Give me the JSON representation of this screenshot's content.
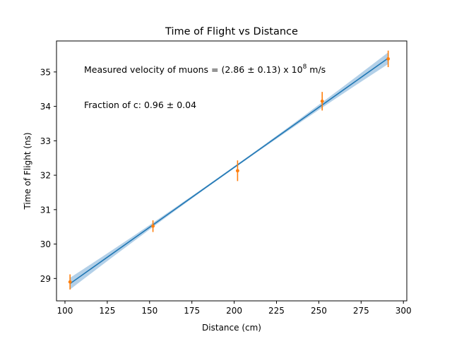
{
  "chart_data": {
    "type": "scatter",
    "title": "Time of Flight vs Distance",
    "xlabel": "Distance (cm)",
    "ylabel": "Time of Flight (ns)",
    "xlim": [
      95,
      302
    ],
    "ylim": [
      28.35,
      35.9
    ],
    "xticks": [
      100,
      125,
      150,
      175,
      200,
      225,
      250,
      275,
      300
    ],
    "yticks": [
      29,
      30,
      31,
      32,
      33,
      34,
      35
    ],
    "grid": false,
    "points": [
      {
        "x": 103,
        "y": 28.9,
        "yerr": 0.22
      },
      {
        "x": 152,
        "y": 30.52,
        "yerr": 0.17
      },
      {
        "x": 202,
        "y": 32.13,
        "yerr": 0.3
      },
      {
        "x": 252,
        "y": 34.15,
        "yerr": 0.27
      },
      {
        "x": 291,
        "y": 35.38,
        "yerr": 0.24
      }
    ],
    "fit": {
      "x_start": 103,
      "x_end": 291,
      "y_start": 28.85,
      "y_end": 35.4,
      "band_halfwidth_ends": 0.17,
      "band_halfwidth_mid": 0.03
    },
    "colors": {
      "fit": "#1f77b4",
      "band": "#a6c8e4",
      "points": "#ff7f0e"
    },
    "annotations": {
      "velocity_prefix": "Measured velocity of muons = (2.86 ± 0.13) x 10",
      "velocity_exponent": "8",
      "velocity_suffix": " m/s",
      "fraction": "Fraction of c: 0.96 ± 0.04"
    }
  }
}
